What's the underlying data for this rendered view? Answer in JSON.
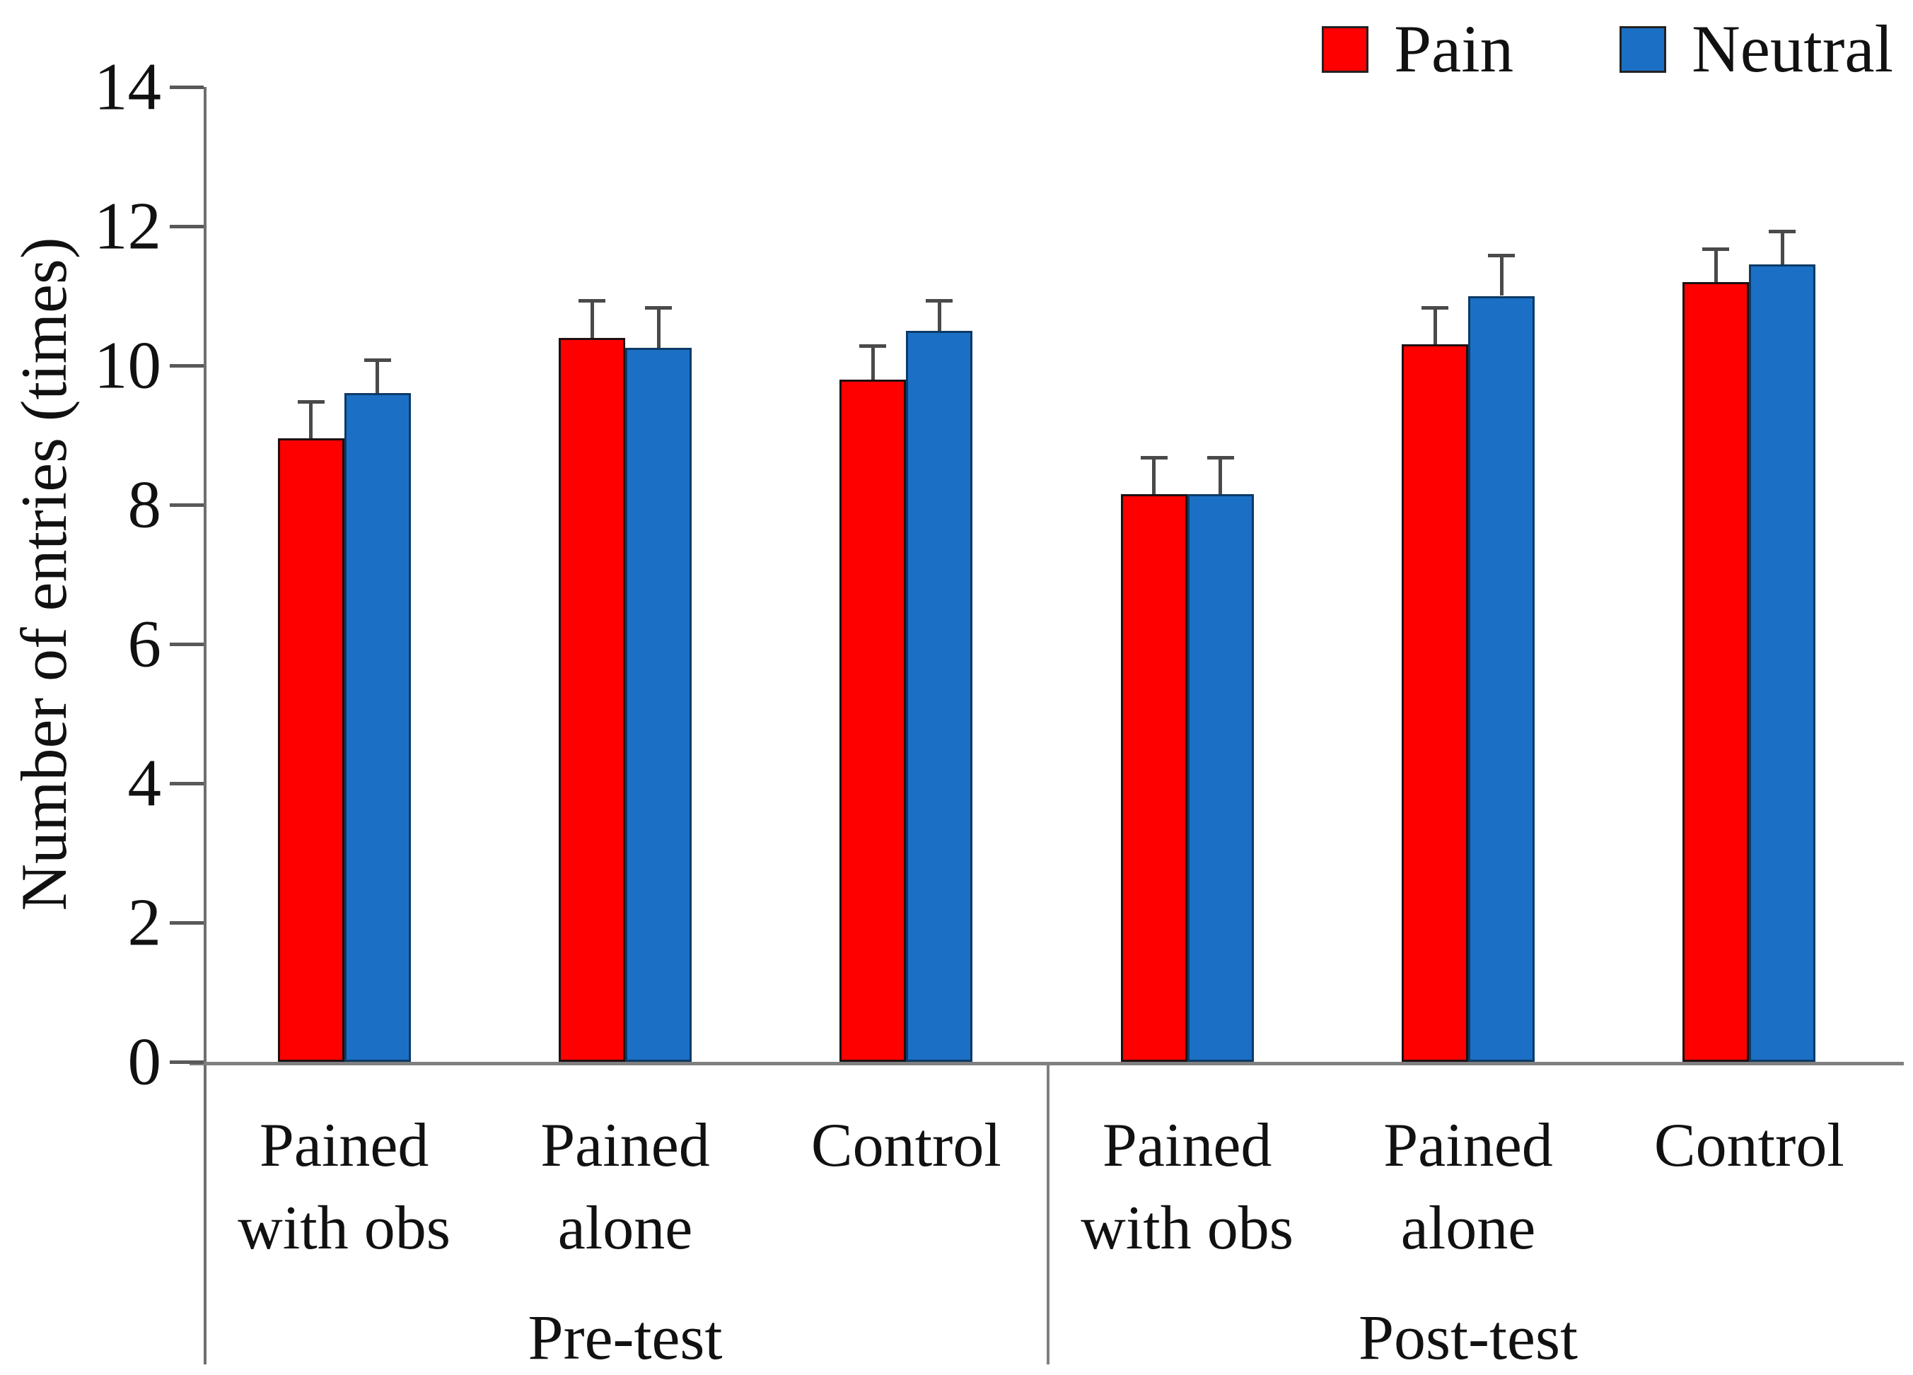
{
  "chart_data": {
    "type": "bar",
    "title": "",
    "xlabel": "",
    "ylabel": "Number of entries (times)",
    "ylim": [
      0,
      14
    ],
    "yticks": [
      0,
      2,
      4,
      6,
      8,
      10,
      12,
      14
    ],
    "grid": false,
    "legend_position": "top-right",
    "legend": [
      {
        "name": "Pain",
        "color": "#fe0000",
        "border": "#1f1010"
      },
      {
        "name": "Neutral",
        "color": "#1b70c5",
        "border": "#0d3a66"
      }
    ],
    "error_bars": "upper, with caps",
    "sections": [
      {
        "label": "Pre-test",
        "groups": [
          {
            "label_lines": [
              "Pained",
              "with obs"
            ],
            "values": {
              "Pain": 8.95,
              "Neutral": 9.6
            },
            "errors": {
              "Pain": 0.55,
              "Neutral": 0.5
            }
          },
          {
            "label_lines": [
              "Pained",
              "alone"
            ],
            "values": {
              "Pain": 10.4,
              "Neutral": 10.25
            },
            "errors": {
              "Pain": 0.55,
              "Neutral": 0.6
            }
          },
          {
            "label_lines": [
              "Control"
            ],
            "values": {
              "Pain": 9.8,
              "Neutral": 10.5
            },
            "errors": {
              "Pain": 0.5,
              "Neutral": 0.45
            }
          }
        ]
      },
      {
        "label": "Post-test",
        "groups": [
          {
            "label_lines": [
              "Pained",
              "with obs"
            ],
            "values": {
              "Pain": 8.15,
              "Neutral": 8.15
            },
            "errors": {
              "Pain": 0.55,
              "Neutral": 0.55
            }
          },
          {
            "label_lines": [
              "Pained",
              "alone"
            ],
            "values": {
              "Pain": 10.3,
              "Neutral": 11.0
            },
            "errors": {
              "Pain": 0.55,
              "Neutral": 0.6
            }
          },
          {
            "label_lines": [
              "Control"
            ],
            "values": {
              "Pain": 11.2,
              "Neutral": 11.45
            },
            "errors": {
              "Pain": 0.5,
              "Neutral": 0.5
            }
          }
        ]
      }
    ]
  }
}
